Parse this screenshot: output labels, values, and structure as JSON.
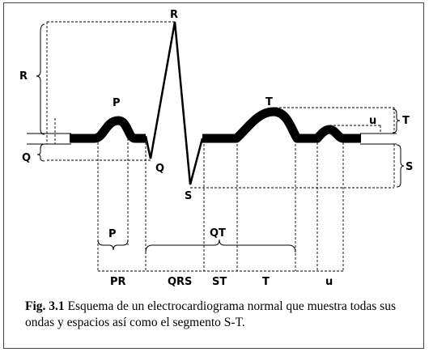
{
  "diagram": {
    "wave_labels": {
      "R": "R",
      "P": "P",
      "Q": "Q",
      "S": "S",
      "T": "T",
      "u": "u"
    },
    "amplitude_labels": {
      "R": "R",
      "Q": "Q",
      "T": "T",
      "u": "u",
      "S": "S"
    },
    "interval_labels": {
      "P": "P",
      "QT": "QT",
      "PR": "PR",
      "QRS": "QRS",
      "ST": "ST",
      "T": "T",
      "u": "u"
    }
  },
  "caption": {
    "label": "Fig. 3.1",
    "text": "Esquema de un electrocardiograma normal que muestra todas sus ondas y espacios así como el segmento S-T."
  }
}
